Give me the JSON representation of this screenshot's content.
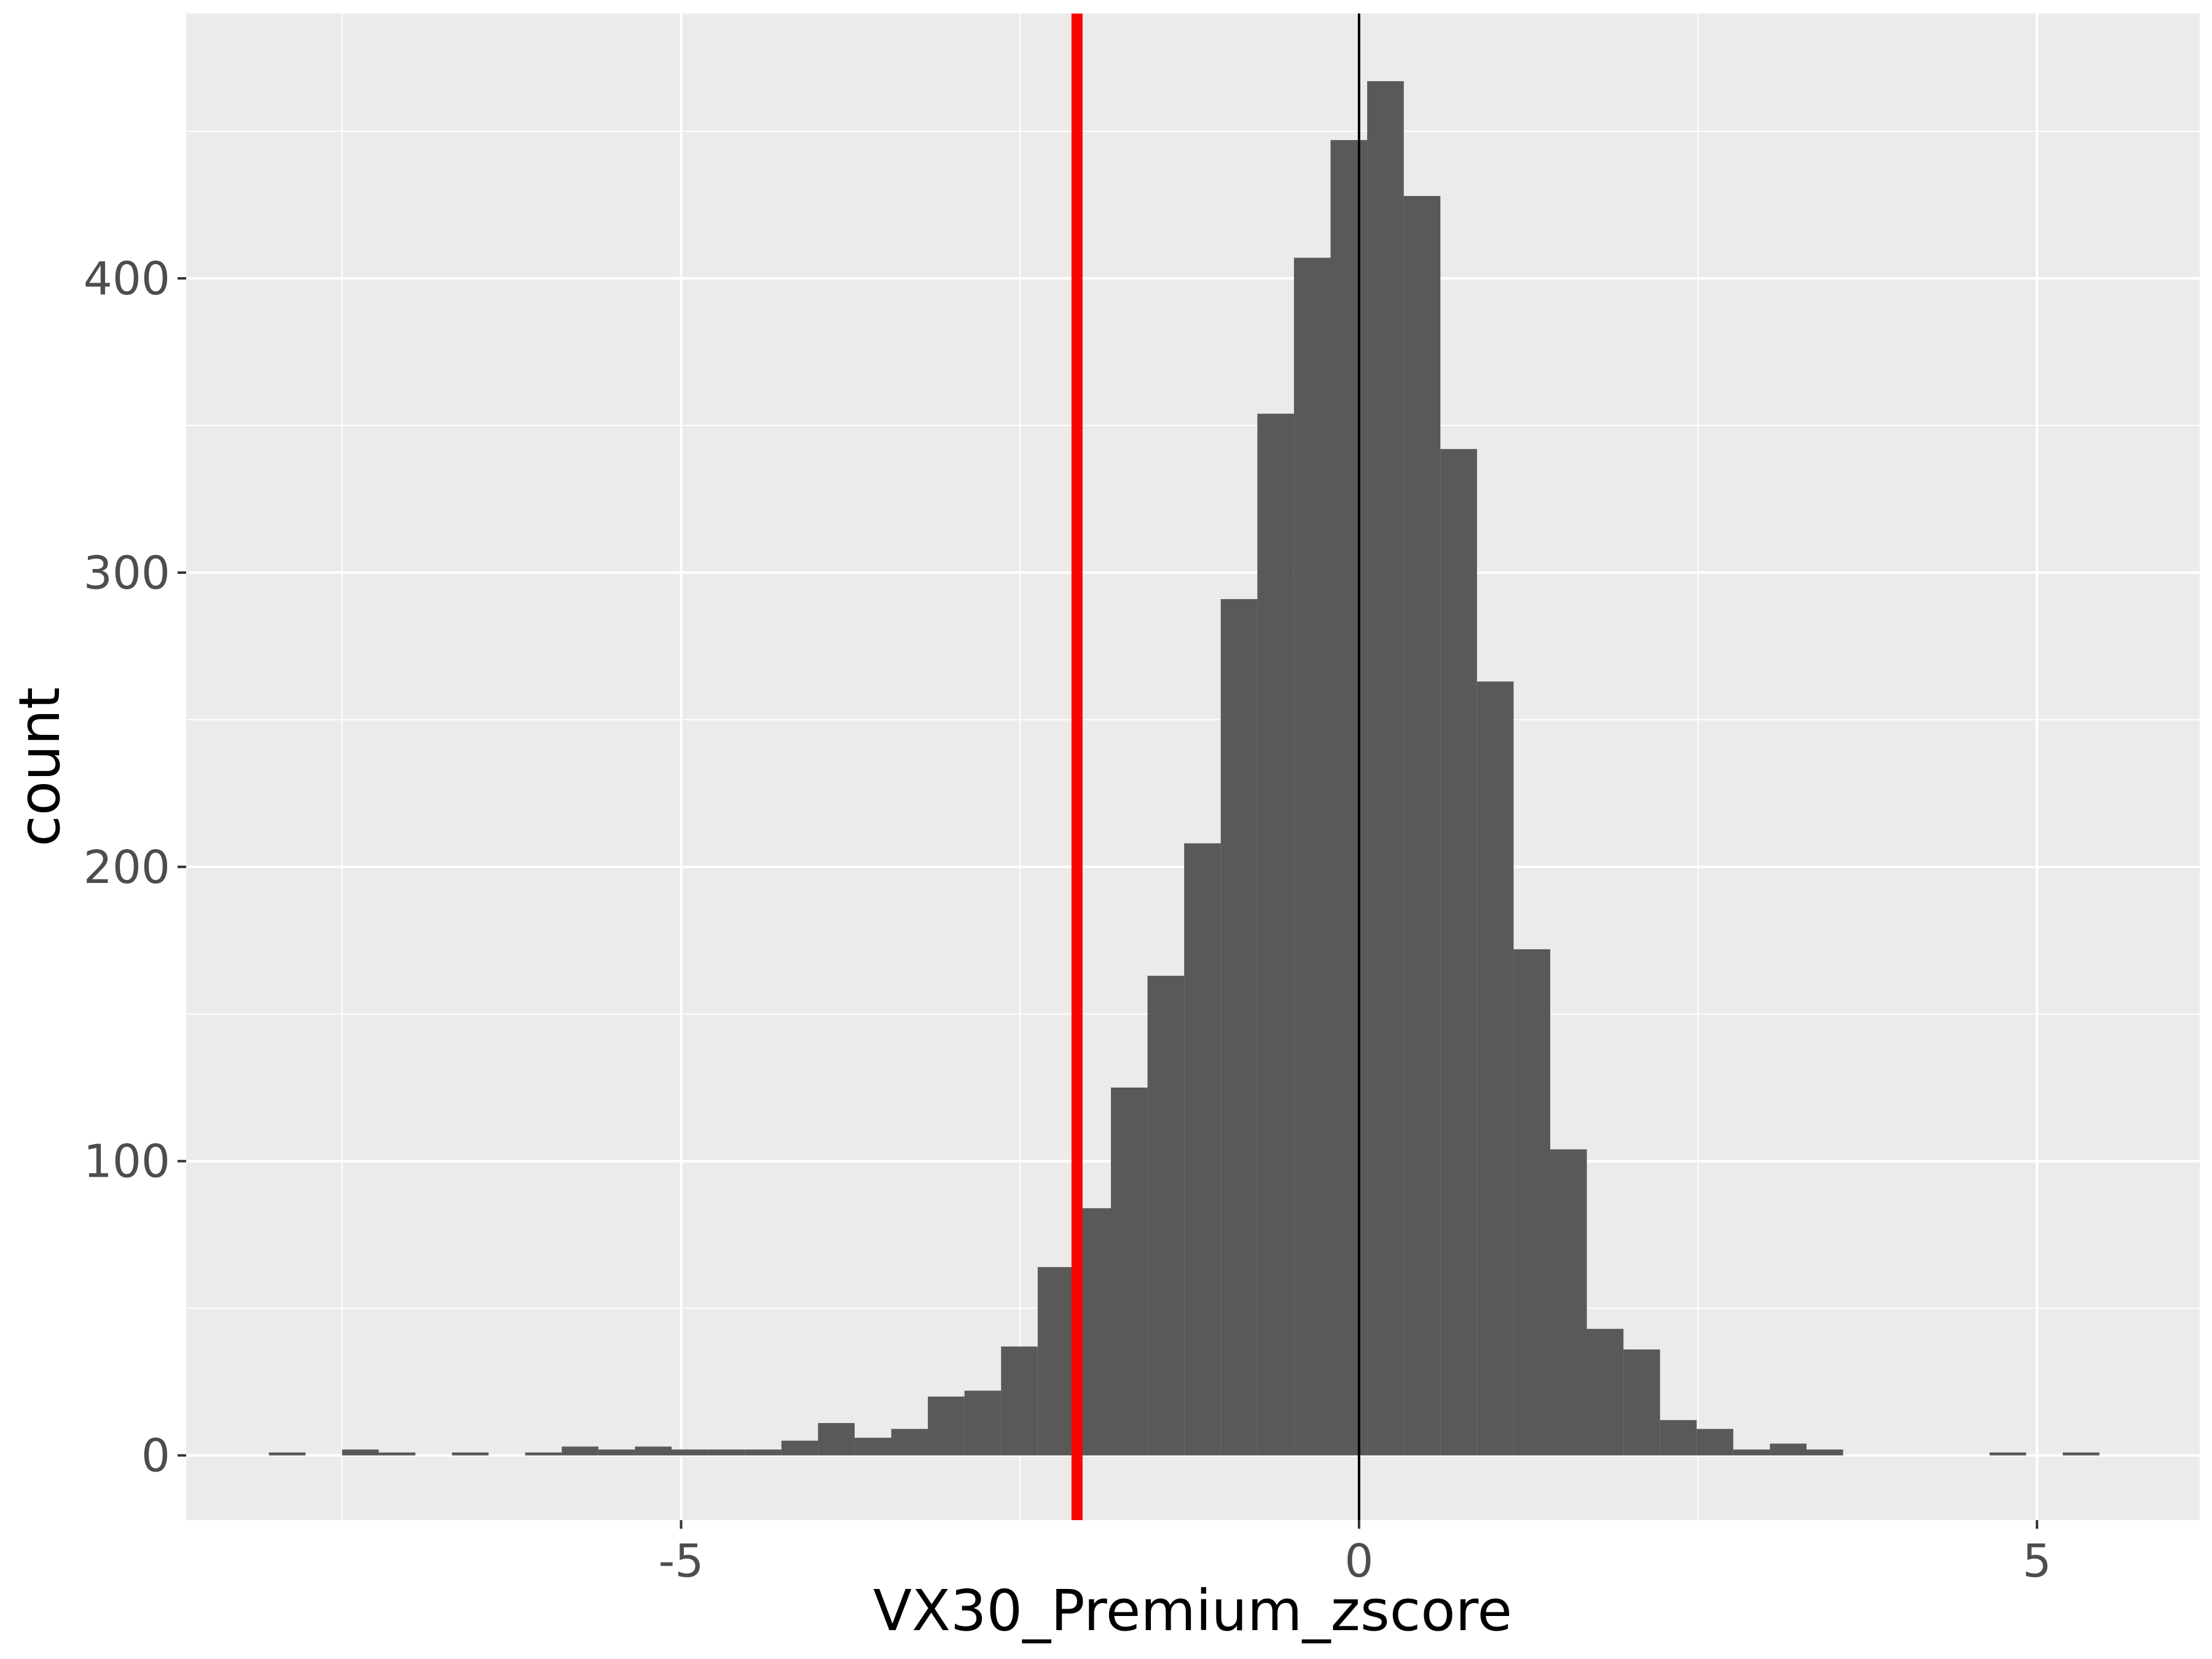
{
  "chart_data": {
    "type": "histogram",
    "title": "",
    "xlabel": "VX30_Premium_zscore",
    "ylabel": "count",
    "xlim": [
      -8.65,
      6.2
    ],
    "ylim": [
      -22,
      490
    ],
    "x_ticks": [
      -5,
      0,
      5
    ],
    "y_ticks": [
      0,
      100,
      200,
      300,
      400
    ],
    "x_tick_labels": [
      "-5",
      "0",
      "5"
    ],
    "y_tick_labels": [
      "0",
      "100",
      "200",
      "300",
      "400"
    ],
    "bin_width": 0.27,
    "bin_starts": [
      -8.04,
      -7.77,
      -7.5,
      -7.23,
      -6.96,
      -6.69,
      -6.42,
      -6.15,
      -5.88,
      -5.61,
      -5.34,
      -5.07,
      -4.8,
      -4.53,
      -4.26,
      -3.99,
      -3.72,
      -3.45,
      -3.18,
      -2.91,
      -2.64,
      -2.37,
      -2.1,
      -1.83,
      -1.56,
      -1.29,
      -1.02,
      -0.75,
      -0.48,
      -0.21,
      0.06,
      0.33,
      0.6,
      0.87,
      1.14,
      1.41,
      1.68,
      1.95,
      2.22,
      2.49,
      2.76,
      3.03,
      3.3,
      3.57,
      3.84,
      4.11,
      4.38,
      4.65,
      4.92,
      5.19
    ],
    "counts": [
      1,
      0,
      2,
      1,
      0,
      1,
      0,
      1,
      3,
      2,
      3,
      2,
      2,
      2,
      5,
      11,
      6,
      9,
      20,
      22,
      37,
      64,
      84,
      125,
      163,
      208,
      291,
      354,
      407,
      447,
      467,
      428,
      342,
      263,
      172,
      104,
      43,
      36,
      12,
      9,
      2,
      4,
      2,
      0,
      0,
      0,
      0,
      1,
      0,
      1
    ],
    "vlines": [
      {
        "x": -2.08,
        "color": "#ff0000"
      },
      {
        "x": 0,
        "color": "#000000"
      }
    ],
    "bar_color": "#595959",
    "panel_background": "#ebebeb",
    "grid": true
  }
}
